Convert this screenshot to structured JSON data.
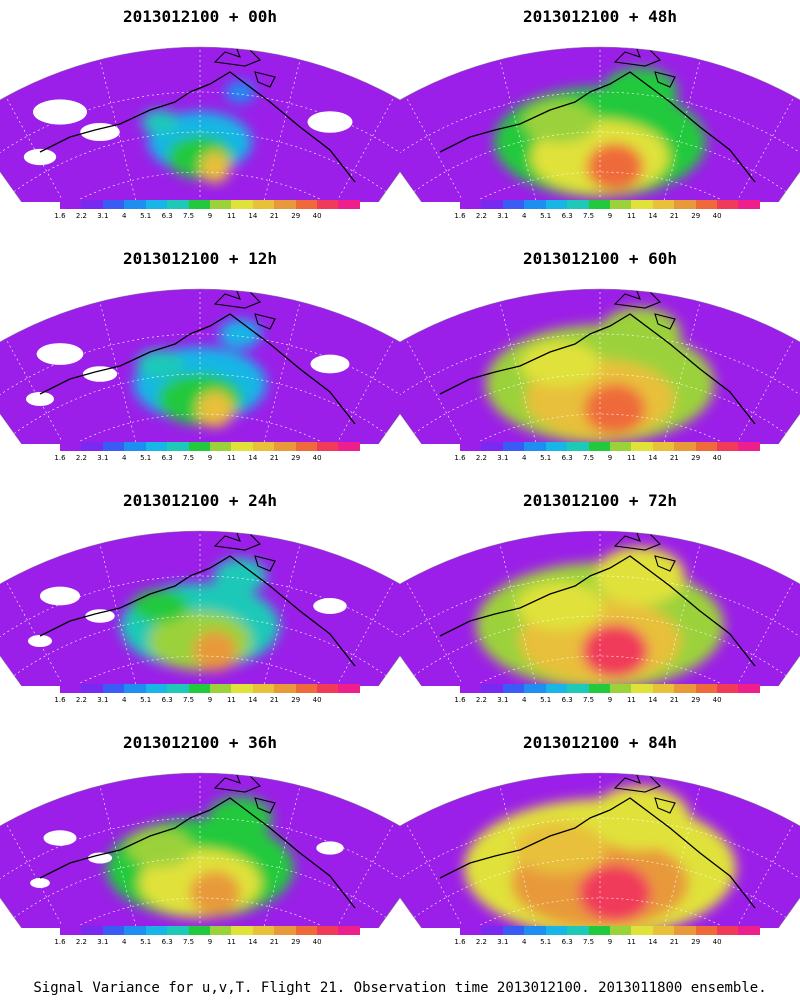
{
  "panels": [
    {
      "title": "2013012100 + 00h",
      "lead": "00h",
      "intensity": 0.1
    },
    {
      "title": "2013012100 + 48h",
      "lead": "48h",
      "intensity": 0.55
    },
    {
      "title": "2013012100 + 12h",
      "lead": "12h",
      "intensity": 0.22
    },
    {
      "title": "2013012100 + 60h",
      "lead": "60h",
      "intensity": 0.62
    },
    {
      "title": "2013012100 + 24h",
      "lead": "24h",
      "intensity": 0.33
    },
    {
      "title": "2013012100 + 72h",
      "lead": "72h",
      "intensity": 0.7
    },
    {
      "title": "2013012100 + 36h",
      "lead": "36h",
      "intensity": 0.45
    },
    {
      "title": "2013012100 + 84h",
      "lead": "84h",
      "intensity": 0.8
    }
  ],
  "colorbar": {
    "tick_labels": [
      "1.6",
      "2.2",
      "3.1",
      "4",
      "5.1",
      "6.3",
      "7.5",
      "9",
      "11",
      "14",
      "21",
      "29",
      "40"
    ],
    "colors": [
      "#9b1fe8",
      "#7a2af0",
      "#3a5cf5",
      "#1e8ff0",
      "#18b6e6",
      "#1fc9b8",
      "#22c93c",
      "#9bd23a",
      "#e0e23a",
      "#e8c03a",
      "#e89a3a",
      "#ef6a3a",
      "#f03a5a",
      "#ee1e8c"
    ]
  },
  "caption": "Signal Variance for u,v,T. Flight 21. Observation time 2013012100. 2013011800 ensemble."
}
